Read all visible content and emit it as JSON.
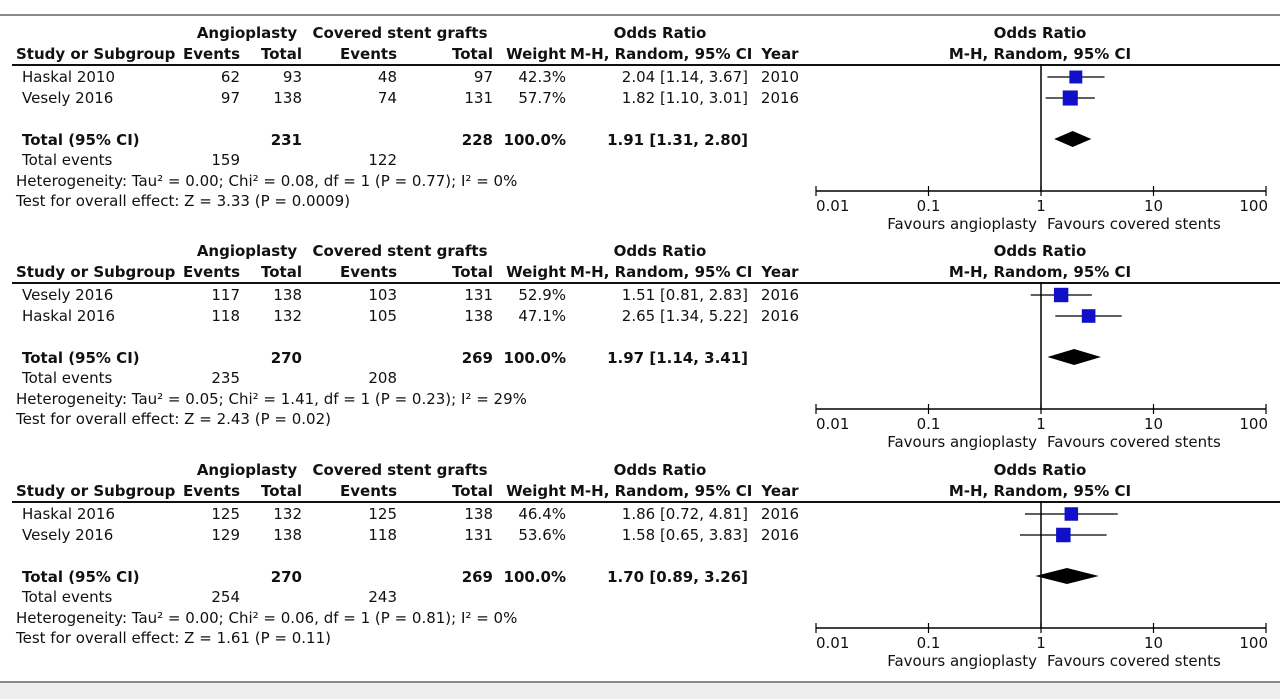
{
  "header": {
    "study": "Study or Subgroup",
    "exp_group": "Angioplasty",
    "ctl_group": "Covered stent grafts",
    "events": "Events",
    "total": "Total",
    "weight": "Weight",
    "or_title": "Odds Ratio",
    "or_method": "M-H, Random, 95% CI",
    "year": "Year"
  },
  "plot_header": {
    "title": "Odds Ratio",
    "method": "M-H, Random, 95% CI"
  },
  "axis": {
    "ticks": [
      "0.01",
      "0.1",
      "1",
      "10",
      "100"
    ],
    "favours_left": "Favours angioplasty",
    "favours_right": "Favours covered stents"
  },
  "colors": {
    "marker": "#1010c8",
    "diamond": "#000000",
    "rule": "#111111"
  },
  "total_row_label": "Total (95% CI)",
  "total_events_label": "Total events",
  "panels": [
    {
      "studies": [
        {
          "name": "Haskal 2010",
          "e_events": "62",
          "e_total": "93",
          "c_events": "48",
          "c_total": "97",
          "weight": "42.3%",
          "or_text": "2.04 [1.14, 3.67]",
          "year": "2010"
        },
        {
          "name": "Vesely 2016",
          "e_events": "97",
          "e_total": "138",
          "c_events": "74",
          "c_total": "131",
          "weight": "57.7%",
          "or_text": "1.82 [1.10, 3.01]",
          "year": "2016"
        }
      ],
      "total": {
        "e_total": "231",
        "c_total": "228",
        "weight": "100.0%",
        "or_text": "1.91 [1.31, 2.80]"
      },
      "total_events": {
        "e": "159",
        "c": "122"
      },
      "heterogeneity": "Heterogeneity: Tau² = 0.00; Chi² = 0.08, df = 1 (P = 0.77); I² = 0%",
      "overall": "Test for overall effect: Z = 3.33 (P = 0.0009)"
    },
    {
      "studies": [
        {
          "name": "Vesely 2016",
          "e_events": "117",
          "e_total": "138",
          "c_events": "103",
          "c_total": "131",
          "weight": "52.9%",
          "or_text": "1.51 [0.81, 2.83]",
          "year": "2016"
        },
        {
          "name": "Haskal 2016",
          "e_events": "118",
          "e_total": "132",
          "c_events": "105",
          "c_total": "138",
          "weight": "47.1%",
          "or_text": "2.65 [1.34, 5.22]",
          "year": "2016"
        }
      ],
      "total": {
        "e_total": "270",
        "c_total": "269",
        "weight": "100.0%",
        "or_text": "1.97 [1.14, 3.41]"
      },
      "total_events": {
        "e": "235",
        "c": "208"
      },
      "heterogeneity": "Heterogeneity: Tau² = 0.05; Chi² = 1.41, df = 1 (P = 0.23); I² = 29%",
      "overall": "Test for overall effect: Z = 2.43 (P = 0.02)"
    },
    {
      "studies": [
        {
          "name": "Haskal 2016",
          "e_events": "125",
          "e_total": "132",
          "c_events": "125",
          "c_total": "138",
          "weight": "46.4%",
          "or_text": "1.86 [0.72, 4.81]",
          "year": "2016"
        },
        {
          "name": "Vesely 2016",
          "e_events": "129",
          "e_total": "138",
          "c_events": "118",
          "c_total": "131",
          "weight": "53.6%",
          "or_text": "1.58 [0.65, 3.83]",
          "year": "2016"
        }
      ],
      "total": {
        "e_total": "270",
        "c_total": "269",
        "weight": "100.0%",
        "or_text": "1.70 [0.89, 3.26]"
      },
      "total_events": {
        "e": "254",
        "c": "243"
      },
      "heterogeneity": "Heterogeneity: Tau² = 0.00; Chi² = 0.06, df = 1 (P = 0.81); I² = 0%",
      "overall": "Test for overall effect: Z = 1.61 (P = 0.11)"
    }
  ],
  "chart_data": [
    {
      "type": "scatter",
      "xlim": [
        0.01,
        100
      ],
      "x_scale": "log",
      "series": [
        {
          "name": "Haskal 2010",
          "or": 2.04,
          "lo": 1.14,
          "hi": 3.67,
          "weight": 42.3
        },
        {
          "name": "Vesely 2016",
          "or": 1.82,
          "lo": 1.1,
          "hi": 3.01,
          "weight": 57.7
        }
      ],
      "pooled": {
        "or": 1.91,
        "lo": 1.31,
        "hi": 2.8
      }
    },
    {
      "type": "scatter",
      "xlim": [
        0.01,
        100
      ],
      "x_scale": "log",
      "series": [
        {
          "name": "Vesely 2016",
          "or": 1.51,
          "lo": 0.81,
          "hi": 2.83,
          "weight": 52.9
        },
        {
          "name": "Haskal 2016",
          "or": 2.65,
          "lo": 1.34,
          "hi": 5.22,
          "weight": 47.1
        }
      ],
      "pooled": {
        "or": 1.97,
        "lo": 1.14,
        "hi": 3.41
      }
    },
    {
      "type": "scatter",
      "xlim": [
        0.01,
        100
      ],
      "x_scale": "log",
      "series": [
        {
          "name": "Haskal 2016",
          "or": 1.86,
          "lo": 0.72,
          "hi": 4.81,
          "weight": 46.4
        },
        {
          "name": "Vesely 2016",
          "or": 1.58,
          "lo": 0.65,
          "hi": 3.83,
          "weight": 53.6
        }
      ],
      "pooled": {
        "or": 1.7,
        "lo": 0.89,
        "hi": 3.26
      }
    }
  ]
}
